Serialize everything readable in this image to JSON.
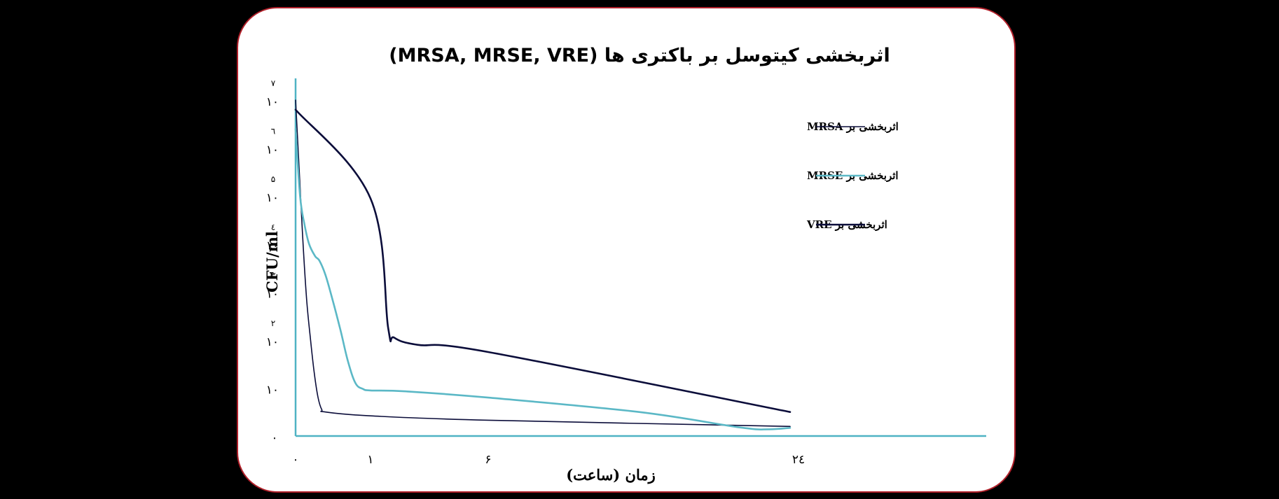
{
  "chart_data": {
    "type": "line",
    "title": "اثربخشی کیتوسل بر باکتری ها (MRSA, MRSE, VRE)",
    "xlabel": "زمان (ساعت)",
    "ylabel": "CFU/ml",
    "x_ticks": [
      "۰",
      "۱",
      "۶",
      "۲٤"
    ],
    "y_ticks": [
      {
        "base": "",
        "exp": "۰"
      },
      {
        "base": "۱۰",
        "exp": ""
      },
      {
        "base": "۱۰",
        "exp": "۲"
      },
      {
        "base": "۱۰",
        "exp": "۳"
      },
      {
        "base": "۱۰",
        "exp": "٤"
      },
      {
        "base": "۱۰",
        "exp": "۵"
      },
      {
        "base": "۱۰",
        "exp": "٦"
      },
      {
        "base": "۱۰",
        "exp": "۷"
      }
    ],
    "ylim": [
      0,
      7
    ],
    "legend_position": "top-right",
    "grid": false,
    "axis_color": "#4fb3c4",
    "series": [
      {
        "name": "اثربخشی بر MRSA",
        "legend_tag": "MRSA",
        "color": "#0b0d3a",
        "points": [
          [
            0,
            7.0
          ],
          [
            0.05,
            5.5
          ],
          [
            0.1,
            4.0
          ],
          [
            0.15,
            2.8
          ],
          [
            0.2,
            2.0
          ],
          [
            0.25,
            1.3
          ],
          [
            0.3,
            0.8
          ],
          [
            0.35,
            0.55
          ],
          [
            0.4,
            0.5
          ],
          [
            1,
            0.42
          ],
          [
            6,
            0.33
          ],
          [
            24,
            0.2
          ]
        ]
      },
      {
        "name": "اثربخشی بر MRSE",
        "legend_tag": "MRSE",
        "color": "#5bb8c6",
        "points": [
          [
            0,
            6.4
          ],
          [
            0.06,
            5.0
          ],
          [
            0.12,
            4.4
          ],
          [
            0.18,
            4.0
          ],
          [
            0.26,
            3.75
          ],
          [
            0.32,
            3.65
          ],
          [
            0.4,
            3.35
          ],
          [
            0.5,
            2.8
          ],
          [
            0.6,
            2.2
          ],
          [
            0.7,
            1.55
          ],
          [
            0.8,
            1.1
          ],
          [
            0.9,
            0.98
          ],
          [
            1,
            0.95
          ],
          [
            2.5,
            0.93
          ],
          [
            6,
            0.8
          ],
          [
            15,
            0.5
          ],
          [
            21,
            0.18
          ],
          [
            22.7,
            0.14
          ],
          [
            24,
            0.17
          ]
        ]
      },
      {
        "name": "اثربخشی بر VRE",
        "legend_tag": "VRE",
        "color": "#0b0d3a",
        "points": [
          [
            0,
            6.8
          ],
          [
            1,
            4.95
          ],
          [
            1.75,
            2.25
          ],
          [
            2,
            2.05
          ],
          [
            3,
            1.9
          ],
          [
            6,
            1.75
          ],
          [
            24,
            0.5
          ]
        ]
      }
    ]
  }
}
